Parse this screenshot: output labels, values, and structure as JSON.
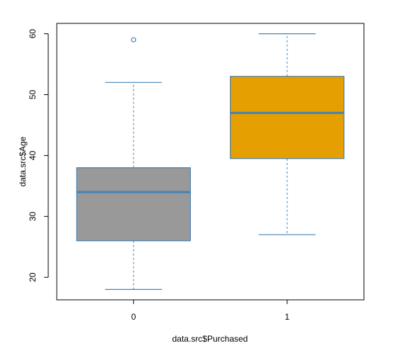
{
  "chart_data": {
    "type": "box",
    "xlabel": "data.src$Purchased",
    "ylabel": "data.src$Age",
    "categories": [
      "0",
      "1"
    ],
    "ylim": [
      16.3,
      61.7
    ],
    "yticks": [
      "20",
      "30",
      "40",
      "50",
      "60"
    ],
    "boxes": [
      {
        "category": "0",
        "whisker_low": 18,
        "q1": 26,
        "median": 34,
        "q3": 38,
        "whisker_high": 52,
        "outliers": [
          59
        ],
        "fill": "#999999"
      },
      {
        "category": "1",
        "whisker_low": 27,
        "q1": 39.5,
        "median": 47,
        "q3": 53,
        "whisker_high": 60,
        "outliers": [],
        "fill": "#E69F00"
      }
    ],
    "colors": {
      "border": "#4682B4",
      "axis": "#000000"
    }
  }
}
